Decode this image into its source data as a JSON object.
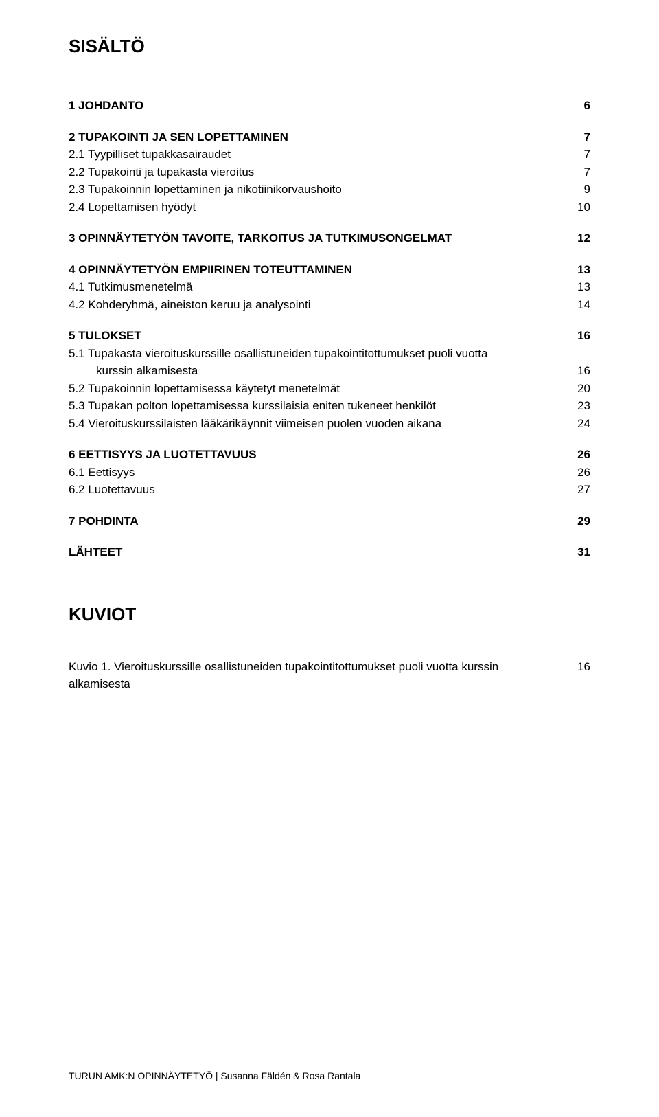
{
  "title": "SISÄLTÖ",
  "toc": [
    {
      "items": [
        {
          "label": "1 JOHDANTO",
          "page": "6",
          "bold": true
        }
      ]
    },
    {
      "items": [
        {
          "label": "2 TUPAKOINTI JA SEN LOPETTAMINEN",
          "page": "7",
          "bold": true
        },
        {
          "label": "2.1 Tyypilliset tupakkasairaudet",
          "page": "7"
        },
        {
          "label": "2.2 Tupakointi ja tupakasta vieroitus",
          "page": "7"
        },
        {
          "label": "2.3 Tupakoinnin lopettaminen ja nikotiinikorvaushoito",
          "page": "9"
        },
        {
          "label": "2.4 Lopettamisen hyödyt",
          "page": "10"
        }
      ]
    },
    {
      "items": [
        {
          "label": "3 OPINNÄYTETYÖN TAVOITE, TARKOITUS JA TUTKIMUSONGELMAT",
          "page": "12",
          "bold": true
        }
      ]
    },
    {
      "items": [
        {
          "label": "4 OPINNÄYTETYÖN EMPIIRINEN TOTEUTTAMINEN",
          "page": "13",
          "bold": true
        },
        {
          "label": "4.1 Tutkimusmenetelmä",
          "page": "13"
        },
        {
          "label": "4.2 Kohderyhmä, aineiston keruu ja analysointi",
          "page": "14"
        }
      ]
    },
    {
      "items": [
        {
          "label": "5 TULOKSET",
          "page": "16",
          "bold": true
        },
        {
          "label": "5.1 Tupakasta vieroituskurssille osallistuneiden tupakointitottumukset puoli vuotta",
          "indent_next": "kurssin alkamisesta",
          "page": "16"
        },
        {
          "label": "5.2 Tupakoinnin lopettamisessa käytetyt menetelmät",
          "page": "20"
        },
        {
          "label": "5.3 Tupakan polton lopettamisessa kurssilaisia eniten tukeneet henkilöt",
          "page": "23"
        },
        {
          "label": "5.4 Vieroituskurssilaisten lääkärikäynnit viimeisen puolen vuoden aikana",
          "page": "24"
        }
      ]
    },
    {
      "items": [
        {
          "label": "6 EETTISYYS JA LUOTETTAVUUS",
          "page": "26",
          "bold": true
        },
        {
          "label": "6.1 Eettisyys",
          "page": "26"
        },
        {
          "label": "6.2 Luotettavuus",
          "page": "27"
        }
      ]
    },
    {
      "items": [
        {
          "label": "7 POHDINTA",
          "page": "29",
          "bold": true
        }
      ]
    },
    {
      "items": [
        {
          "label": "LÄHTEET",
          "page": "31",
          "bold": true
        }
      ]
    }
  ],
  "kuviot_title": "KUVIOT",
  "kuviot": [
    {
      "label": "Kuvio 1. Vieroituskurssille osallistuneiden tupakointitottumukset puoli vuotta kurssin alkamisesta",
      "page": "16"
    }
  ],
  "footer": "TURUN AMK:N OPINNÄYTETYÖ | Susanna Fäldén & Rosa Rantala"
}
